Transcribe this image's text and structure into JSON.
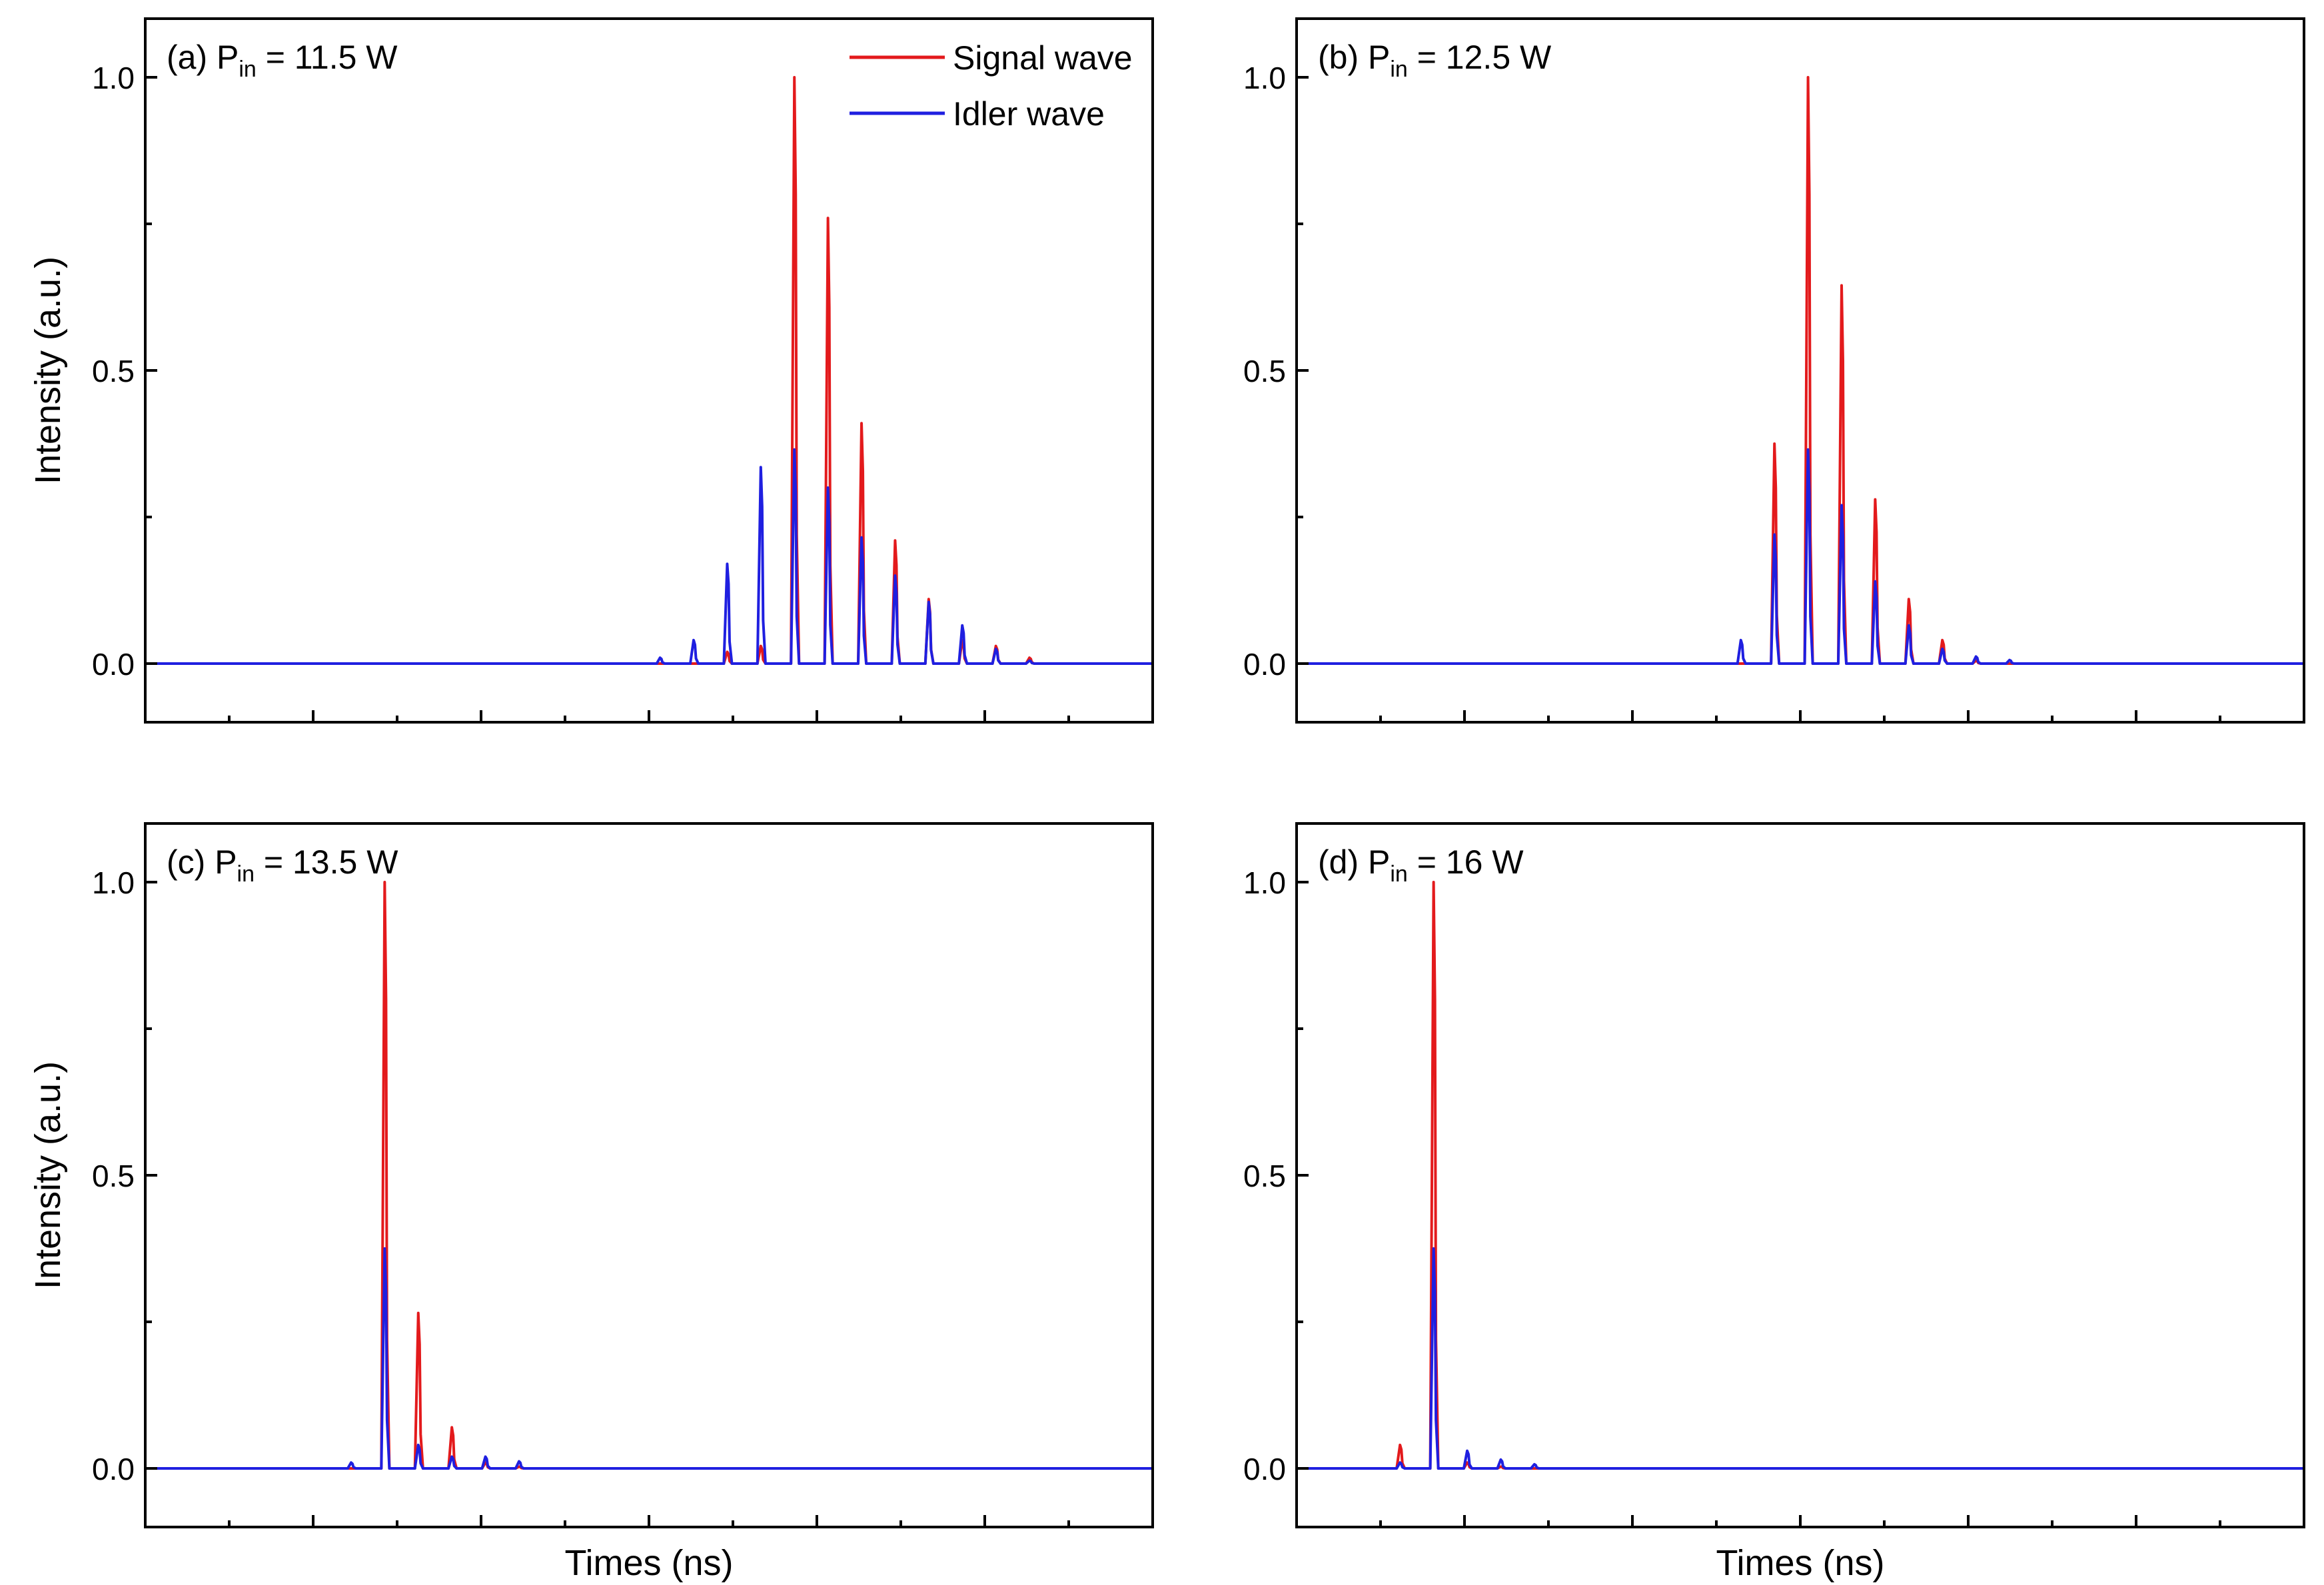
{
  "figure": {
    "colors": {
      "signal": "#e31a1c",
      "idler": "#1f1fe0",
      "axis": "#000000",
      "background": "#ffffff"
    },
    "legend": {
      "signal_label": "Signal wave",
      "idler_label": "Idler wave",
      "placement": "top-right of panel (a)"
    },
    "x_axis_title": "Times (ns)",
    "y_axis_title": "Intensity (a.u.)",
    "y_tick_labels": [
      "0.0",
      "0.5",
      "1.0"
    ]
  },
  "chart_data": [
    {
      "type": "line",
      "panel": "a",
      "label": {
        "prefix": "(a) P",
        "sub": "in",
        "suffix": " = 11.5 W"
      },
      "xlabel": "",
      "ylabel": "Intensity (a.u.)",
      "xlim": [
        0,
        30
      ],
      "ylim": [
        -0.1,
        1.1
      ],
      "yticks": [
        0,
        0.5,
        1.0
      ],
      "x_tick_labels_shown": false,
      "legend": true,
      "pulse_positions": [
        15.35,
        16.35,
        17.35,
        18.35,
        19.35,
        20.35,
        21.35,
        22.35,
        23.35,
        24.35,
        25.35,
        26.35
      ],
      "series": [
        {
          "name": "Signal wave",
          "values": [
            0.0,
            0.0,
            0.02,
            0.03,
            1.0,
            0.76,
            0.41,
            0.21,
            0.11,
            0.04,
            0.03,
            0.01
          ]
        },
        {
          "name": "Idler wave",
          "values": [
            0.01,
            0.04,
            0.17,
            0.335,
            0.365,
            0.3,
            0.215,
            0.15,
            0.105,
            0.065,
            0.025,
            0.005
          ]
        }
      ]
    },
    {
      "type": "line",
      "panel": "b",
      "label": {
        "prefix": "(b) P",
        "sub": "in",
        "suffix": " = 12.5 W"
      },
      "xlabel": "",
      "ylabel": "",
      "xlim": [
        0,
        30
      ],
      "ylim": [
        -0.1,
        1.1
      ],
      "yticks": [
        0,
        0.5,
        1.0
      ],
      "x_tick_labels_shown": false,
      "legend": false,
      "pulse_positions": [
        13.25,
        14.25,
        15.25,
        16.25,
        17.25,
        18.25,
        19.25,
        20.25,
        21.25
      ],
      "series": [
        {
          "name": "Signal wave",
          "values": [
            0.0,
            0.375,
            1.0,
            0.645,
            0.28,
            0.11,
            0.04,
            0.005,
            0.0
          ]
        },
        {
          "name": "Idler wave",
          "values": [
            0.04,
            0.22,
            0.365,
            0.27,
            0.14,
            0.065,
            0.025,
            0.012,
            0.006
          ]
        }
      ]
    },
    {
      "type": "line",
      "panel": "c",
      "label": {
        "prefix": "(c) P",
        "sub": "in",
        "suffix": " = 13.5 W"
      },
      "xlabel": "Times (ns)",
      "ylabel": "Intensity (a.u.)",
      "xlim": [
        0,
        30
      ],
      "ylim": [
        -0.1,
        1.1
      ],
      "yticks": [
        0,
        0.5,
        1.0
      ],
      "x_tick_labels_shown": false,
      "legend": false,
      "pulse_positions": [
        6.15,
        7.15,
        8.15,
        9.15,
        10.15,
        11.15
      ],
      "series": [
        {
          "name": "Signal wave",
          "values": [
            0.0,
            1.0,
            0.265,
            0.07,
            0.01,
            0.003
          ]
        },
        {
          "name": "Idler wave",
          "values": [
            0.01,
            0.375,
            0.04,
            0.02,
            0.02,
            0.012
          ]
        }
      ]
    },
    {
      "type": "line",
      "panel": "d",
      "label": {
        "prefix": "(d) P",
        "sub": "in",
        "suffix": " = 16 W"
      },
      "xlabel": "Times (ns)",
      "ylabel": "",
      "xlim": [
        0,
        30
      ],
      "ylim": [
        -0.1,
        1.1
      ],
      "yticks": [
        0,
        0.5,
        1.0
      ],
      "x_tick_labels_shown": false,
      "legend": false,
      "pulse_positions": [
        3.1,
        4.1,
        5.1,
        6.1,
        7.1
      ],
      "series": [
        {
          "name": "Signal wave",
          "values": [
            0.04,
            1.0,
            0.01,
            0.003,
            0.0
          ]
        },
        {
          "name": "Idler wave",
          "values": [
            0.01,
            0.375,
            0.03,
            0.015,
            0.007
          ]
        }
      ]
    }
  ]
}
